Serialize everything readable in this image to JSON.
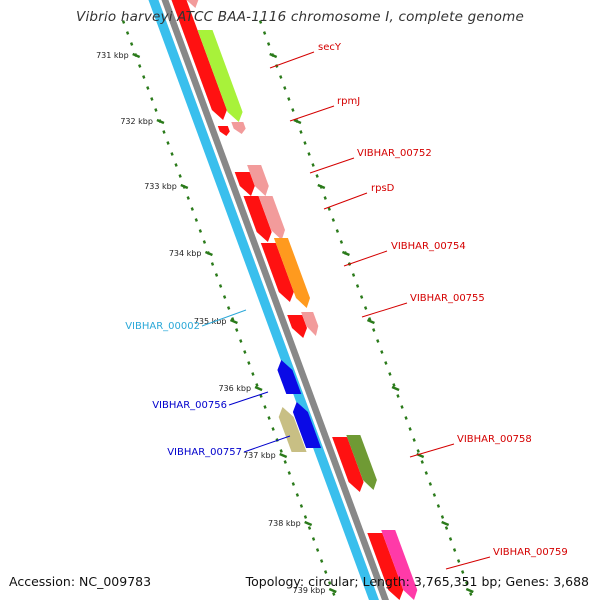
{
  "title": "Vibrio harveyi ATCC BAA-1116 chromosome I, complete genome",
  "footer": {
    "accession": "Accession: NC_009783",
    "stats": "Topology: circular; Length: 3,765,351 bp; Genes: 3,688"
  },
  "colors": {
    "background": "#ffffff",
    "backbone_gray": "#888888",
    "backbone_blue": "#39bfed",
    "tick_green": "#2a7a1a",
    "forward_label": "#d40000",
    "reverse_label_cyan": "#2aa8d8",
    "reverse_label_blue": "#0000cc"
  },
  "ticks": [
    {
      "label": "731 kbp"
    },
    {
      "label": "732 kbp"
    },
    {
      "label": "733 kbp"
    },
    {
      "label": "734 kbp"
    },
    {
      "label": "735 kbp"
    },
    {
      "label": "736 kbp"
    },
    {
      "label": "737 kbp"
    },
    {
      "label": "738 kbp"
    },
    {
      "label": "739 kbp"
    }
  ],
  "features": [
    {
      "name": "secY",
      "strand": "+",
      "color": "#a8f23a"
    },
    {
      "name": "rpmJ",
      "strand": "+",
      "color": "#f29b9b"
    },
    {
      "name": "VIBHAR_00752",
      "strand": "+",
      "color": "#f29b9b"
    },
    {
      "name": "rpsD",
      "strand": "+",
      "color": "#f29b9b"
    },
    {
      "name": "VIBHAR_00754",
      "strand": "+",
      "color": "#ff9a1e"
    },
    {
      "name": "VIBHAR_00755",
      "strand": "+",
      "color": "#f29b9b"
    },
    {
      "name": "VIBHAR_00002",
      "strand": "-",
      "color": "#39bfed"
    },
    {
      "name": "VIBHAR_00756",
      "strand": "-",
      "color": "#0a0ae6"
    },
    {
      "name": "VIBHAR_00757",
      "strand": "-",
      "color": "#c8bf84"
    },
    {
      "name": "VIBHAR_00758",
      "strand": "+",
      "color": "#6f9a34"
    },
    {
      "name": "VIBHAR_00759",
      "strand": "+",
      "color": "#ff3aa8"
    }
  ]
}
